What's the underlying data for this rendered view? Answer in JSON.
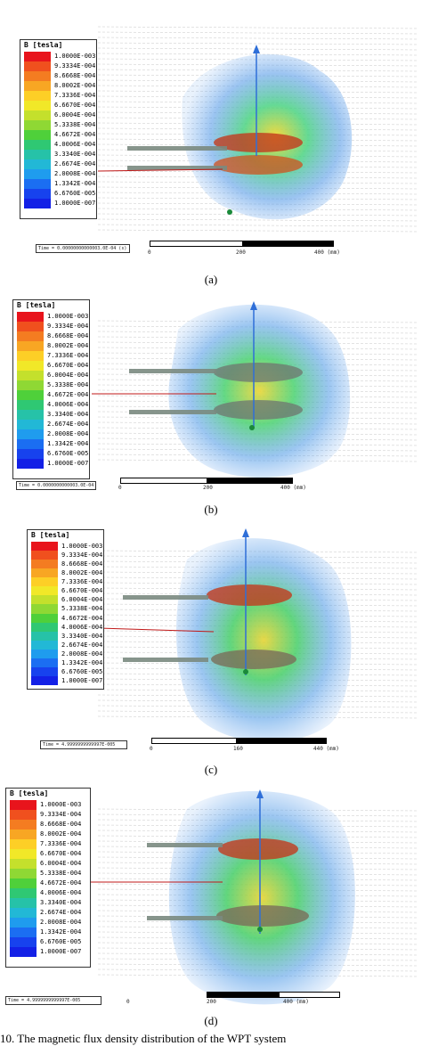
{
  "panels": [
    {
      "id": "a",
      "legend_title": "B [tesla]",
      "legend_values": [
        "1.0000E-003",
        "9.3334E-004",
        "8.6668E-004",
        "8.0002E-004",
        "7.3336E-004",
        "6.6670E-004",
        "6.0004E-004",
        "5.3338E-004",
        "4.6672E-004",
        "4.0006E-004",
        "3.3340E-004",
        "2.6674E-004",
        "2.0008E-004",
        "1.3342E-004",
        "6.6760E-005",
        "1.0000E-007"
      ],
      "time_label": "Time = 0.00000000000003.0E-04 (s)",
      "scale_labels": [
        "0",
        "200",
        "400 (mm)"
      ],
      "caption": "(a)"
    },
    {
      "id": "b",
      "legend_title": "B [tesla]",
      "legend_values": [
        "1.0000E-003",
        "9.3334E-004",
        "8.6668E-004",
        "8.0002E-004",
        "7.3336E-004",
        "6.6670E-004",
        "6.0004E-004",
        "5.3338E-004",
        "4.6672E-004",
        "4.0006E-004",
        "3.3340E-004",
        "2.6674E-004",
        "2.0008E-004",
        "1.3342E-004",
        "6.6760E-005",
        "1.0000E-007"
      ],
      "time_label": "Time = 0.0000000000003.0E-04",
      "scale_labels": [
        "0",
        "200",
        "400 (mm)"
      ],
      "caption": "(b)"
    },
    {
      "id": "c",
      "legend_title": "B [tesla]",
      "legend_values": [
        "1.0000E-003",
        "9.3334E-004",
        "8.6668E-004",
        "8.0002E-004",
        "7.3336E-004",
        "6.6670E-004",
        "6.0004E-004",
        "5.3338E-004",
        "4.6672E-004",
        "4.0006E-004",
        "3.3340E-004",
        "2.6674E-004",
        "2.0008E-004",
        "1.3342E-004",
        "6.6760E-005",
        "1.0000E-007"
      ],
      "time_label": "Time = 4.9999999999997E-005",
      "scale_labels": [
        "0",
        "160",
        "440 (mm)"
      ],
      "caption": "(c)"
    },
    {
      "id": "d",
      "legend_title": "B [tesla]",
      "legend_values": [
        "1.0000E-003",
        "9.3334E-004",
        "8.6668E-004",
        "8.0002E-004",
        "7.3336E-004",
        "6.6670E-004",
        "6.0004E-004",
        "5.3338E-004",
        "4.6672E-004",
        "4.0006E-004",
        "3.3340E-004",
        "2.6674E-004",
        "2.0008E-004",
        "1.3342E-004",
        "6.6760E-005",
        "1.0000E-007"
      ],
      "time_label": "Time = 4.9999999999997E-005",
      "scale_labels": [
        "0",
        "200",
        "400 (mm)"
      ],
      "caption": "(d)"
    }
  ],
  "figure_caption": "10.   The magnetic flux density distribution of the WPT system",
  "colors": {
    "legend_scale": [
      "#e8141c",
      "#f0501e",
      "#f47c21",
      "#f8a623",
      "#fdcf26",
      "#f1e828",
      "#c4e02c",
      "#8fd834",
      "#4fd03a",
      "#2fc873",
      "#26c2a8",
      "#22b8d6",
      "#1f9cee",
      "#1b6ef2",
      "#1742ee",
      "#1320e6"
    ],
    "grid": "#c8c8c8",
    "field_blue": "#5a9ee8",
    "axis": "#2f6fd8",
    "feed_line": "#c01818"
  }
}
